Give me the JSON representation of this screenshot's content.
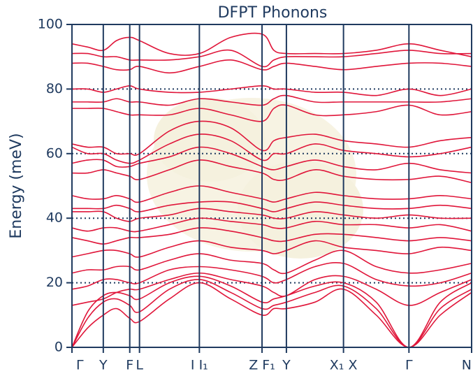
{
  "chart_data": {
    "type": "line",
    "title": "DFPT Phonons",
    "y_label": "Energy (meV)",
    "color": "#e0163a",
    "x": [
      0,
      0.225,
      0.45,
      0.64,
      0.83,
      0.97,
      1.4,
      1.83,
      2.28,
      2.73,
      2.9,
      3.08,
      3.49,
      3.9,
      4.37,
      4.84,
      5.29,
      5.74
    ],
    "xlim": [
      0,
      5.74
    ],
    "xticks": [
      {
        "value": 0,
        "label": "Γ"
      },
      {
        "value": 0.45,
        "label": "Y"
      },
      {
        "value": 0.83,
        "label": "F"
      },
      {
        "value": 0.97,
        "label": "L"
      },
      {
        "value": 1.83,
        "label": "I  I₁"
      },
      {
        "value": 2.73,
        "label": "Z F₁"
      },
      {
        "value": 3.08,
        "label": "Y"
      },
      {
        "value": 3.9,
        "label": "X₁ X"
      },
      {
        "value": 4.84,
        "label": "Γ"
      },
      {
        "value": 5.74,
        "label": "N"
      }
    ],
    "ylim": [
      0,
      100
    ],
    "yticks": [
      0,
      20,
      40,
      60,
      80,
      100
    ],
    "grid": true,
    "series": [
      {
        "values": [
          0,
          6,
          10,
          12,
          9,
          8,
          15,
          20,
          15,
          10,
          12,
          12,
          14,
          18,
          10,
          0,
          10,
          17
        ]
      },
      {
        "values": [
          0,
          9,
          14,
          15,
          13,
          11,
          18,
          21,
          17,
          12,
          13,
          14,
          17,
          19,
          12,
          0,
          12,
          18
        ]
      },
      {
        "values": [
          0,
          11,
          16,
          17,
          16,
          15,
          20,
          22,
          19,
          14,
          15,
          16,
          19,
          20,
          14,
          0,
          14,
          20
        ]
      },
      {
        "values": [
          13,
          14,
          15,
          17,
          18,
          18,
          21,
          23,
          21,
          19,
          17,
          16,
          21,
          22,
          18,
          13,
          17,
          21
        ]
      },
      {
        "values": [
          18,
          19,
          21,
          21,
          20,
          20,
          24,
          25,
          24,
          22,
          20,
          21,
          25,
          26,
          21,
          19,
          20,
          23
        ]
      },
      {
        "values": [
          23,
          24,
          24,
          25,
          25,
          24,
          27,
          29,
          27,
          26,
          24,
          23,
          27,
          30,
          25,
          23,
          24,
          26
        ]
      },
      {
        "values": [
          28,
          29,
          30,
          30,
          29,
          28,
          31,
          33,
          31,
          30,
          29,
          30,
          33,
          31,
          30,
          29,
          31,
          30
        ]
      },
      {
        "values": [
          34,
          33,
          32,
          33,
          34,
          34,
          35,
          37,
          36,
          34,
          33,
          33,
          35,
          35,
          34,
          33,
          34,
          33
        ]
      },
      {
        "values": [
          37,
          36,
          37,
          37,
          36,
          36,
          38,
          40,
          39,
          38,
          37,
          37,
          39,
          38,
          38,
          37,
          38,
          36
        ]
      },
      {
        "values": [
          42,
          42,
          42,
          40,
          39,
          40,
          41,
          43,
          42,
          41,
          40,
          40,
          42,
          41,
          40,
          41,
          40,
          40
        ]
      },
      {
        "values": [
          43,
          43,
          43,
          44,
          43,
          42,
          44,
          45,
          45,
          43,
          42,
          43,
          45,
          44,
          43,
          43,
          44,
          43
        ]
      },
      {
        "values": [
          47,
          46,
          46,
          47,
          46,
          45,
          48,
          50,
          48,
          46,
          45,
          46,
          48,
          47,
          46,
          46,
          47,
          46
        ]
      },
      {
        "values": [
          54,
          54,
          55,
          54,
          53,
          52,
          55,
          58,
          56,
          54,
          52,
          52,
          55,
          53,
          52,
          52,
          53,
          51
        ]
      },
      {
        "values": [
          57,
          58,
          58,
          56,
          56,
          57,
          59,
          62,
          60,
          56,
          55,
          56,
          58,
          56,
          55,
          57,
          55,
          54
        ]
      },
      {
        "values": [
          62,
          60,
          60,
          58,
          57,
          58,
          63,
          66,
          64,
          58,
          60,
          60,
          63,
          61,
          60,
          59,
          60,
          62
        ]
      },
      {
        "values": [
          63,
          62,
          62,
          60,
          60,
          60,
          67,
          70,
          68,
          61,
          64,
          65,
          66,
          64,
          63,
          62,
          64,
          65
        ]
      },
      {
        "values": [
          74,
          74,
          74,
          73,
          72,
          72,
          72,
          74,
          72,
          70,
          74,
          75,
          72,
          72,
          73,
          75,
          72,
          73
        ]
      },
      {
        "values": [
          76,
          76,
          76,
          77,
          76,
          76,
          75,
          77,
          76,
          75,
          77,
          78,
          76,
          76,
          76,
          76,
          76,
          77
        ]
      },
      {
        "values": [
          80,
          80,
          79,
          80,
          81,
          80,
          79,
          79,
          80,
          81,
          80,
          80,
          79,
          79,
          78,
          80,
          78,
          80
        ]
      },
      {
        "values": [
          88,
          88,
          87,
          86,
          86,
          87,
          85,
          87,
          89,
          86,
          87,
          88,
          87,
          86,
          87,
          88,
          88,
          87
        ]
      },
      {
        "values": [
          91,
          91,
          90,
          90,
          89,
          89,
          89,
          90,
          92,
          87,
          89,
          90,
          90,
          90,
          91,
          92,
          91,
          91
        ]
      },
      {
        "values": [
          94,
          93,
          92,
          95,
          96,
          95,
          91,
          91,
          96,
          97,
          92,
          91,
          91,
          91,
          92,
          94,
          92,
          90
        ]
      }
    ]
  }
}
